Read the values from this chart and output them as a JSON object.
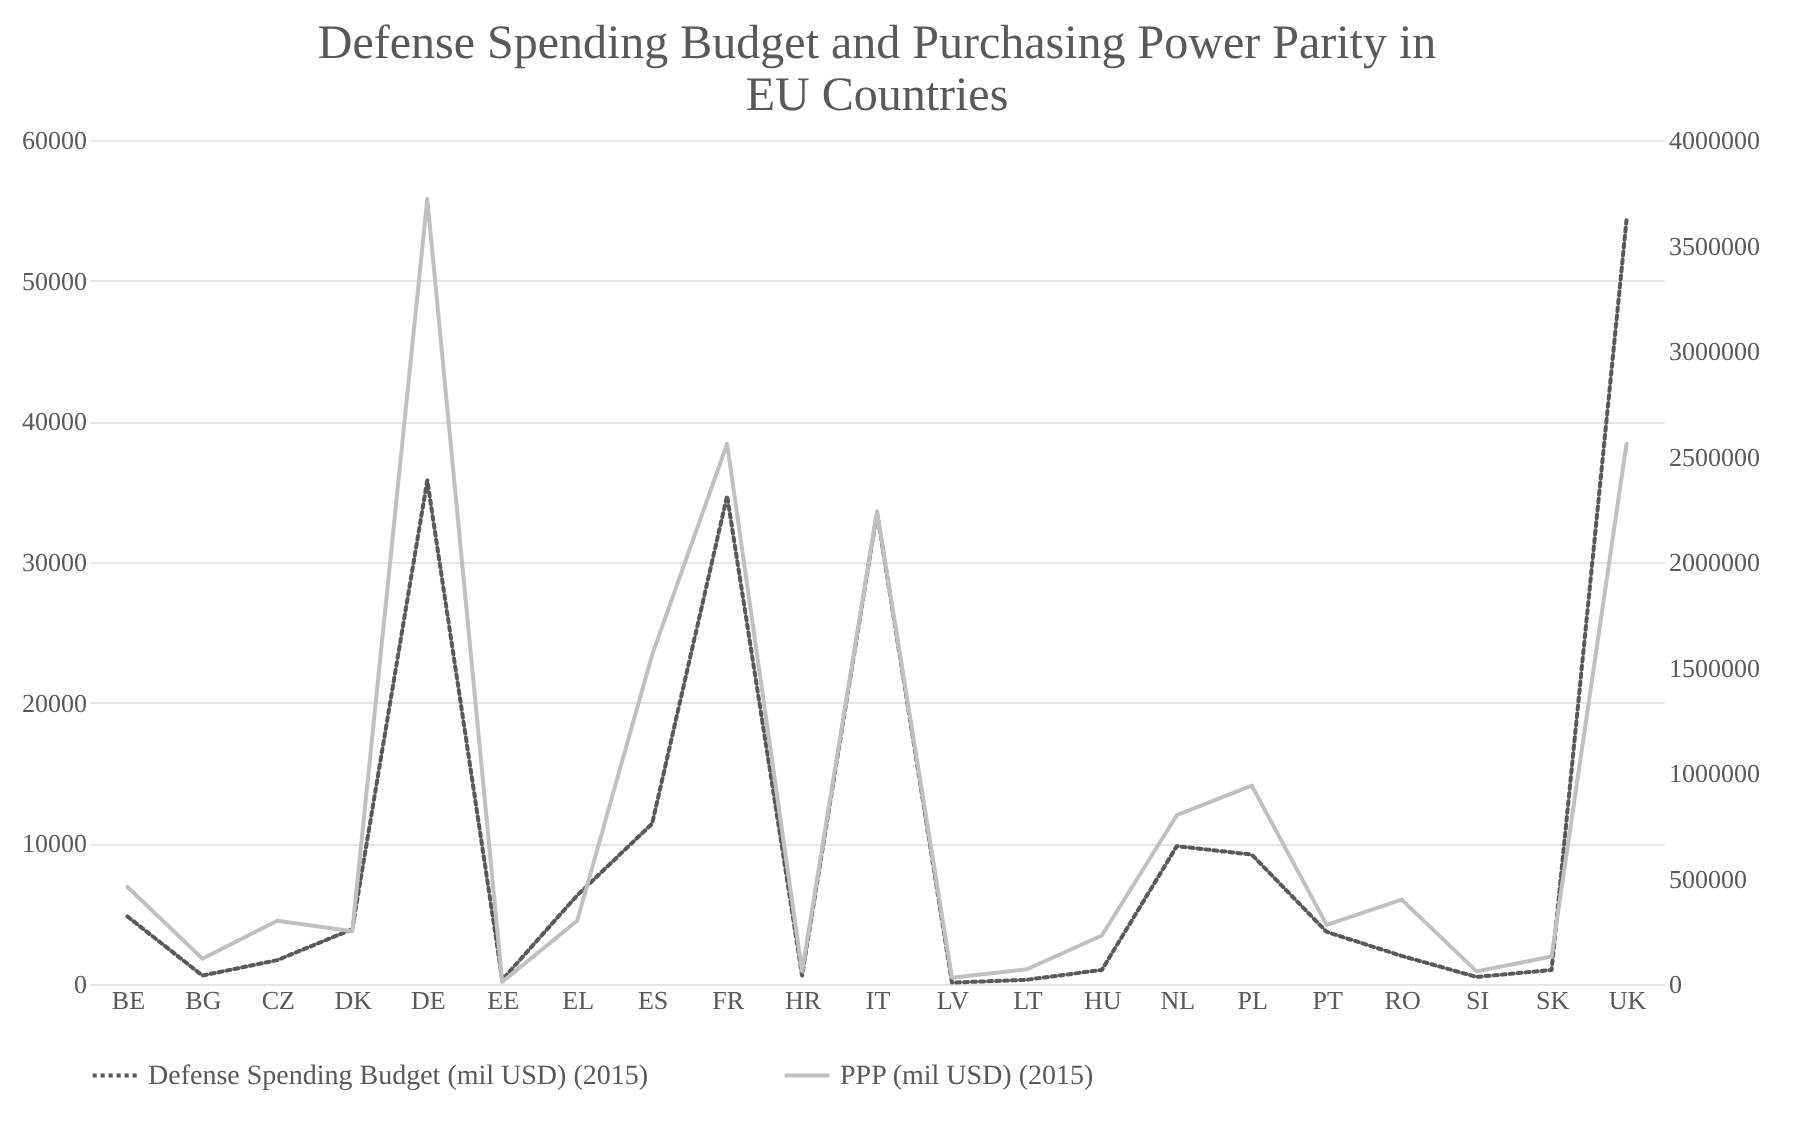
{
  "chart_data": {
    "type": "line",
    "title": "Defense Spending Budget and Purchasing Power Parity in EU Countries",
    "categories": [
      "BE",
      "BG",
      "CZ",
      "DK",
      "DE",
      "EE",
      "EL",
      "ES",
      "FR",
      "HR",
      "IT",
      "LV",
      "LT",
      "HU",
      "NL",
      "PL",
      "PT",
      "RO",
      "SI",
      "SK",
      "UK"
    ],
    "series": [
      {
        "name": "Defense Spending  Budget (mil USD) (2015)",
        "color": "#595959",
        "line_style": "dotted",
        "values": [
          4800,
          600,
          1700,
          3900,
          35800,
          300,
          6300,
          11400,
          34700,
          600,
          33500,
          100,
          300,
          1000,
          9800,
          9200,
          3700,
          2000,
          500,
          1000,
          54300
        ]
      },
      {
        "name": "PPP (mil USD) (2015)",
        "color": "#c0c0c0",
        "line_style": "solid",
        "axis": "y2",
        "values": [
          460000,
          120000,
          300000,
          250000,
          3720000,
          10000,
          300000,
          1560000,
          2560000,
          60000,
          2240000,
          30000,
          70000,
          230000,
          800000,
          940000,
          280000,
          400000,
          60000,
          130000,
          2560000
        ]
      }
    ],
    "ylim": [
      0,
      60000
    ],
    "yticks": [
      0,
      10000,
      20000,
      30000,
      40000,
      50000,
      60000
    ],
    "y2lim": [
      0,
      4000000
    ],
    "y2ticks": [
      0,
      500000,
      1000000,
      1500000,
      2000000,
      2500000,
      3000000,
      3500000,
      4000000
    ],
    "grid": "y",
    "legend": "bottom",
    "marker": "none"
  }
}
